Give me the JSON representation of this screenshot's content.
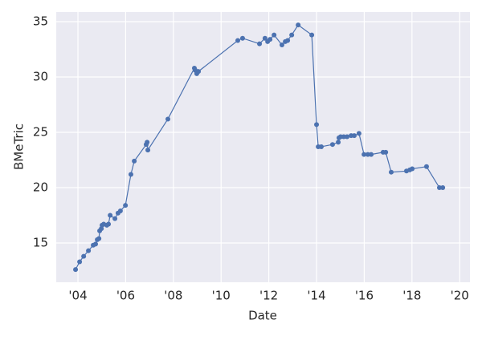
{
  "chart_data": {
    "type": "line",
    "xlabel": "Date",
    "ylabel": "BMeTric",
    "x": [
      2003.9,
      2004.07,
      2004.24,
      2004.44,
      2004.64,
      2004.74,
      2004.81,
      2004.88,
      2004.91,
      2004.98,
      2005.01,
      2005.08,
      2005.21,
      2005.28,
      2005.35,
      2005.55,
      2005.68,
      2005.78,
      2005.99,
      2006.22,
      2006.36,
      2006.86,
      2006.9,
      2006.93,
      2007.77,
      2008.88,
      2008.92,
      2008.98,
      2009.05,
      2010.7,
      2010.9,
      2011.61,
      2011.84,
      2011.95,
      2012.05,
      2012.22,
      2012.55,
      2012.69,
      2012.79,
      2012.96,
      2013.23,
      2013.8,
      2014.0,
      2014.07,
      2014.2,
      2014.67,
      2014.91,
      2014.94,
      2015.01,
      2015.14,
      2015.28,
      2015.45,
      2015.58,
      2015.78,
      2015.99,
      2016.15,
      2016.29,
      2016.79,
      2016.9,
      2017.13,
      2017.77,
      2017.91,
      2018.01,
      2018.61,
      2019.15,
      2019.29
    ],
    "series": [
      {
        "name": "BMeTric",
        "color": "#4c72b0",
        "values": [
          12.6,
          13.3,
          13.8,
          14.3,
          14.8,
          14.9,
          15.3,
          15.4,
          16.1,
          16.3,
          16.6,
          16.7,
          16.6,
          16.7,
          17.5,
          17.2,
          17.7,
          17.9,
          18.4,
          21.2,
          22.4,
          23.9,
          24.1,
          23.4,
          26.2,
          30.8,
          30.6,
          30.3,
          30.5,
          33.3,
          33.5,
          33.0,
          33.5,
          33.2,
          33.4,
          33.8,
          32.9,
          33.2,
          33.3,
          33.8,
          34.7,
          33.8,
          25.7,
          23.7,
          23.7,
          23.9,
          24.1,
          24.5,
          24.6,
          24.6,
          24.6,
          24.7,
          24.7,
          24.9,
          23.0,
          23.0,
          23.0,
          23.2,
          23.2,
          21.4,
          21.5,
          21.6,
          21.7,
          21.9,
          20.0,
          20.0
        ]
      }
    ],
    "xlim": [
      2003.09,
      2020.43
    ],
    "xticks": [
      {
        "value": 2004,
        "label": "'04"
      },
      {
        "value": 2006,
        "label": "'06"
      },
      {
        "value": 2008,
        "label": "'08"
      },
      {
        "value": 2010,
        "label": "'10"
      },
      {
        "value": 2012,
        "label": "'12"
      },
      {
        "value": 2014,
        "label": "'14"
      },
      {
        "value": 2016,
        "label": "'16"
      },
      {
        "value": 2018,
        "label": "'18"
      },
      {
        "value": 2020,
        "label": "'20"
      }
    ],
    "ylim": [
      11.45,
      35.87
    ],
    "yticks": [
      15,
      20,
      25,
      30,
      35
    ],
    "grid": true,
    "background": "#eaeaf2"
  }
}
